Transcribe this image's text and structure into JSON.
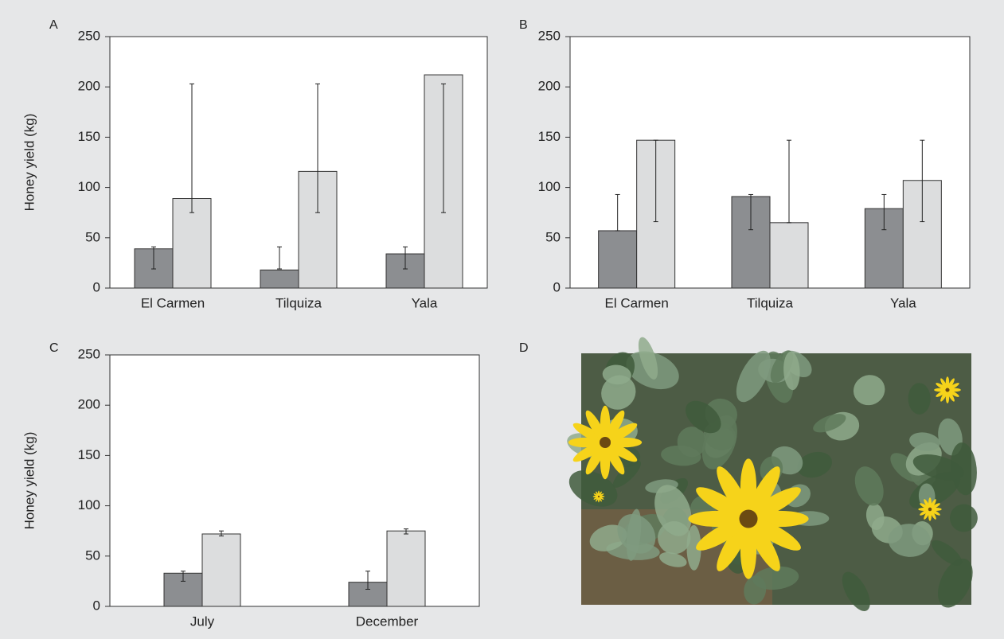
{
  "chart_data": [
    {
      "type": "bar",
      "label": "A",
      "ylabel": "Honey yield (kg)",
      "categories": [
        "El Carmen",
        "Tilquiza",
        "Yala"
      ],
      "series": [
        {
          "color": "#8c8e91",
          "values": [
            39,
            18,
            34
          ],
          "err_low": [
            19,
            19,
            19
          ],
          "err_high": [
            41,
            41,
            41
          ]
        },
        {
          "color": "#dcddde",
          "values": [
            89,
            116,
            212
          ],
          "err_low": [
            75,
            75,
            75
          ],
          "err_high": [
            203,
            203,
            203
          ]
        }
      ],
      "ylim": [
        0,
        250
      ],
      "yticks": [
        0,
        50,
        100,
        150,
        200,
        250
      ]
    },
    {
      "type": "bar",
      "label": "B",
      "categories": [
        "El Carmen",
        "Tilquiza",
        "Yala"
      ],
      "series": [
        {
          "color": "#8c8e91",
          "values": [
            57,
            91,
            79
          ],
          "err_low": [
            57,
            58,
            58
          ],
          "err_high": [
            93,
            93,
            93
          ]
        },
        {
          "color": "#dcddde",
          "values": [
            147,
            65,
            107
          ],
          "err_low": [
            66,
            65,
            66
          ],
          "err_high": [
            147,
            147,
            147
          ]
        }
      ],
      "ylim": [
        0,
        250
      ],
      "yticks": [
        0,
        50,
        100,
        150,
        200,
        250
      ]
    },
    {
      "type": "bar",
      "label": "C",
      "ylabel": "Honey yield (kg)",
      "categories": [
        "July",
        "December"
      ],
      "series": [
        {
          "color": "#8c8e91",
          "values": [
            33,
            24
          ],
          "err_low": [
            25,
            17
          ],
          "err_high": [
            35,
            35
          ]
        },
        {
          "color": "#dcddde",
          "values": [
            72,
            75
          ],
          "err_low": [
            70,
            72
          ],
          "err_high": [
            75,
            77
          ]
        }
      ],
      "ylim": [
        0,
        250
      ],
      "yticks": [
        0,
        50,
        100,
        150,
        200,
        250
      ]
    }
  ],
  "image_panel": {
    "label": "D"
  }
}
